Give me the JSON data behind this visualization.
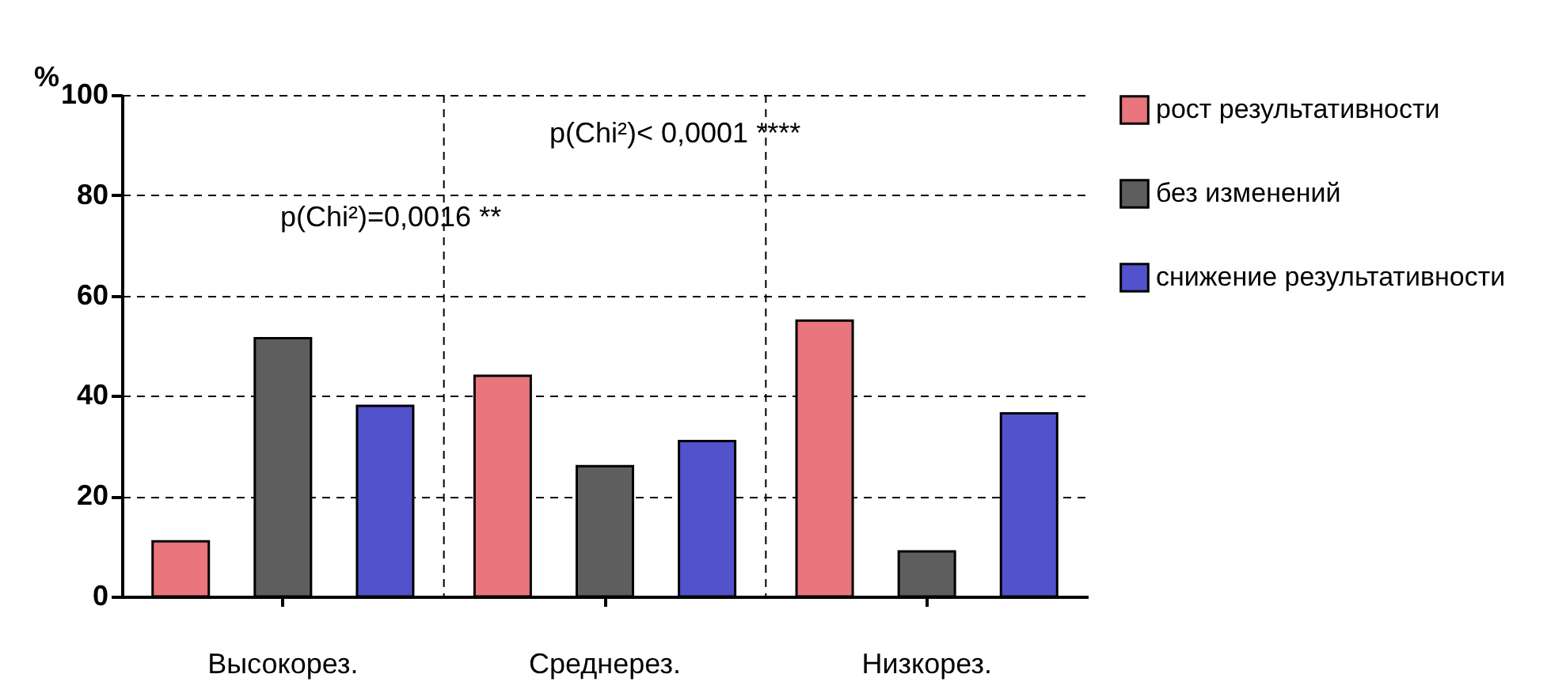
{
  "chart_data": {
    "type": "bar",
    "ylabel": "%",
    "categories": [
      "Высокорез.",
      "Среднерез.",
      "Низкорез."
    ],
    "series": [
      {
        "name": "рост результативности",
        "color": "#e8767c",
        "values": [
          11,
          44,
          55
        ]
      },
      {
        "name": "без изменений",
        "color": "#5e5e5e",
        "values": [
          51.5,
          26,
          9
        ]
      },
      {
        "name": "снижение результативности",
        "color": "#5252cc",
        "values": [
          38,
          31,
          36.5
        ]
      }
    ],
    "ylim": [
      0,
      100
    ],
    "yticks": [
      0,
      20,
      40,
      60,
      80,
      100
    ],
    "grid": true,
    "legend": "right",
    "annotations": [
      "p(Chi²)< 0,0001 ****",
      "p(Chi²)=0,0016 **"
    ]
  }
}
